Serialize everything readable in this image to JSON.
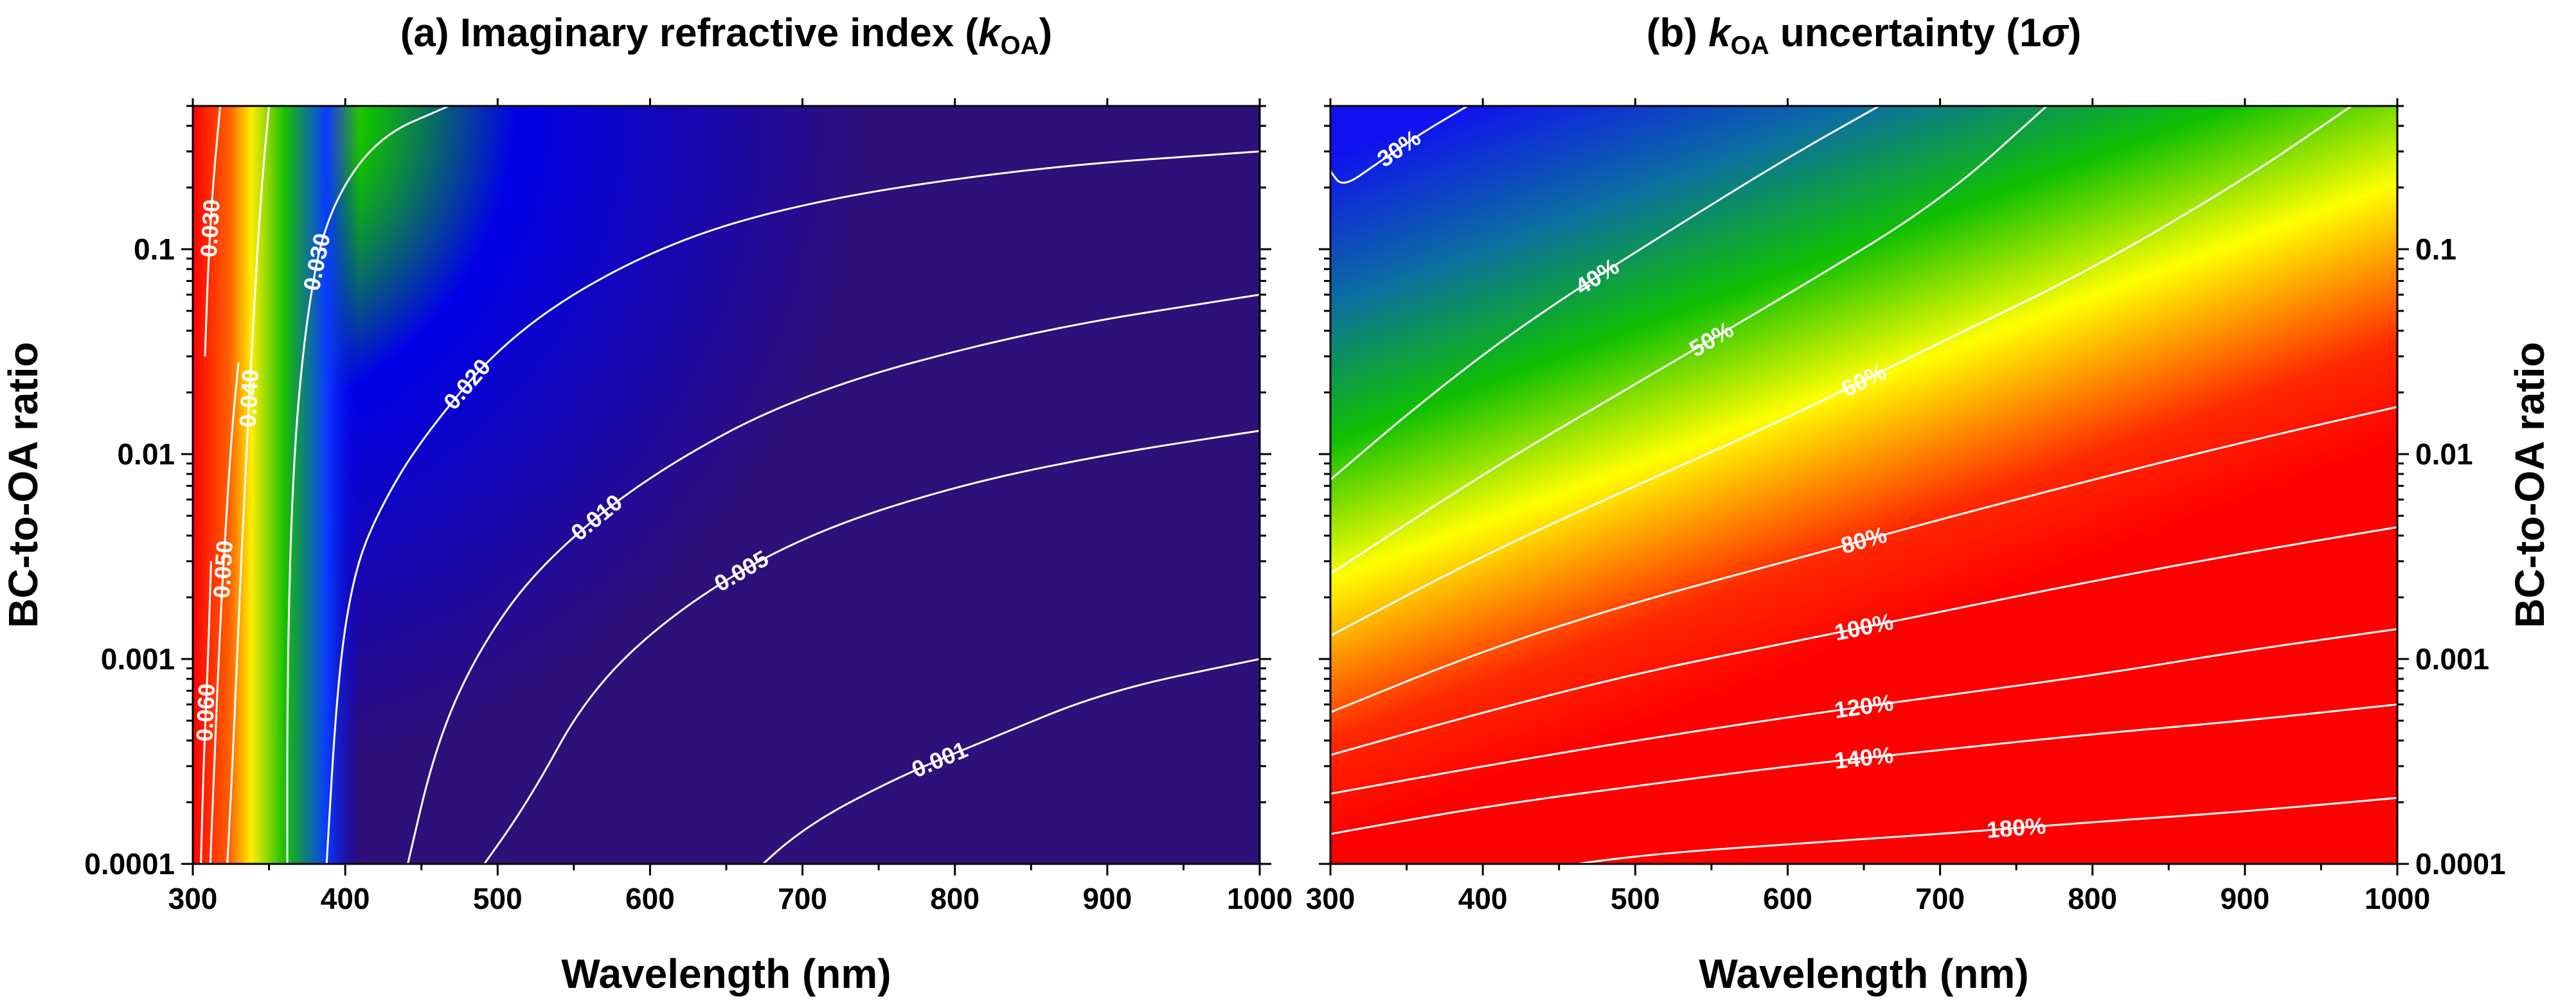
{
  "figure": {
    "panel_a_title": "(a) Imaginary refractive index (",
    "panel_b_title_suffix": " uncertainty (1",
    "k_symbol": "k",
    "k_subscript": "OA",
    "sigma_symbol": "σ",
    "close_paren": ")"
  },
  "chart_data": [
    {
      "type": "heatmap",
      "title": "(a) Imaginary refractive index (kOA)",
      "xlabel": "Wavelength (nm)",
      "ylabel": "BC-to-OA ratio",
      "xlim": [
        300,
        1000
      ],
      "ylim": [
        0.0001,
        0.5
      ],
      "y_scale": "log",
      "xticks": [
        300,
        400,
        500,
        600,
        700,
        800,
        900,
        1000
      ],
      "xtick_labels": [
        "300",
        "400",
        "500",
        "600",
        "700",
        "800",
        "900",
        "1000"
      ],
      "yticks": [
        0.0001,
        0.001,
        0.01,
        0.1
      ],
      "ytick_labels": [
        "0.0001",
        "0.001",
        "0.01",
        "0.1"
      ],
      "colormap": [
        "#2f0f7a",
        "#0000e8",
        "#10c000",
        "#ffff00",
        "#ff0000"
      ],
      "contours": [
        {
          "label": "0.060",
          "points": [
            [
              305,
              8e-05
            ],
            [
              307,
              0.0003
            ],
            [
              310,
              0.001
            ],
            [
              312,
              0.003
            ]
          ]
        },
        {
          "label": "0.050",
          "points": [
            [
              311,
              8e-05
            ],
            [
              314,
              0.0003
            ],
            [
              318,
              0.0015
            ],
            [
              322,
              0.005
            ],
            [
              326,
              0.014
            ],
            [
              330,
              0.028
            ]
          ]
        },
        {
          "label": "0.040",
          "points": [
            [
              322,
              8e-05
            ],
            [
              326,
              0.0003
            ],
            [
              330,
              0.0015
            ],
            [
              334,
              0.007
            ],
            [
              340,
              0.05
            ],
            [
              345,
              0.2
            ],
            [
              350,
              0.5
            ]
          ]
        },
        {
          "label": "0.030",
          "points": [
            [
              362,
              8e-05
            ],
            [
              362,
              0.001
            ],
            [
              366,
              0.01
            ],
            [
              375,
              0.05
            ],
            [
              388,
              0.15
            ],
            [
              420,
              0.35
            ],
            [
              468,
              0.5
            ]
          ]
        },
        {
          "label": "0.030",
          "points": [
            [
              318,
              0.5
            ],
            [
              313,
              0.2
            ],
            [
              310,
              0.08
            ],
            [
              308,
              0.03
            ]
          ]
        },
        {
          "label": "0.020",
          "points": [
            [
              387,
              8e-05
            ],
            [
              395,
              0.0008
            ],
            [
              405,
              0.0025
            ],
            [
              420,
              0.005
            ],
            [
              450,
              0.012
            ],
            [
              510,
              0.04
            ],
            [
              600,
              0.1
            ],
            [
              700,
              0.17
            ],
            [
              850,
              0.25
            ],
            [
              1000,
              0.3
            ]
          ]
        },
        {
          "label": "0.010",
          "points": [
            [
              438,
              8e-05
            ],
            [
              460,
              0.0004
            ],
            [
              490,
              0.0012
            ],
            [
              530,
              0.003
            ],
            [
              600,
              0.008
            ],
            [
              700,
              0.02
            ],
            [
              850,
              0.04
            ],
            [
              1000,
              0.06
            ]
          ]
        },
        {
          "label": "0.005",
          "points": [
            [
              482,
              8e-05
            ],
            [
              520,
              0.0002
            ],
            [
              560,
              0.0007
            ],
            [
              620,
              0.0018
            ],
            [
              700,
              0.004
            ],
            [
              800,
              0.007
            ],
            [
              900,
              0.01
            ],
            [
              1000,
              0.013
            ]
          ]
        },
        {
          "label": "0.001",
          "points": [
            [
              660,
              8e-05
            ],
            [
              700,
              0.00015
            ],
            [
              760,
              0.00026
            ],
            [
              820,
              0.0004
            ],
            [
              900,
              0.0007
            ],
            [
              1000,
              0.001
            ]
          ]
        }
      ]
    },
    {
      "type": "heatmap",
      "title": "(b) kOA uncertainty (1σ)",
      "xlabel": "Wavelength (nm)",
      "ylabel": "BC-to-OA ratio",
      "ylabel_position": "right",
      "xlim": [
        300,
        1000
      ],
      "ylim": [
        0.0001,
        0.5
      ],
      "y_scale": "log",
      "xticks": [
        300,
        400,
        500,
        600,
        700,
        800,
        900,
        1000
      ],
      "xtick_labels": [
        "300",
        "400",
        "500",
        "600",
        "700",
        "800",
        "900",
        "1000"
      ],
      "yticks": [
        0.0001,
        0.001,
        0.01,
        0.1
      ],
      "ytick_labels": [
        "0.0001",
        "0.001",
        "0.01",
        "0.1"
      ],
      "colormap": [
        "#1010f0",
        "#10c000",
        "#ffff00",
        "#ff0000"
      ],
      "contours": [
        {
          "label": "30%",
          "points": [
            [
              300,
              0.24
            ],
            [
              308,
              0.2
            ],
            [
              330,
              0.26
            ],
            [
              360,
              0.37
            ],
            [
              390,
              0.5
            ]
          ]
        },
        {
          "label": "40%",
          "points": [
            [
              300,
              0.0075
            ],
            [
              360,
              0.018
            ],
            [
              430,
              0.045
            ],
            [
              520,
              0.12
            ],
            [
              600,
              0.28
            ],
            [
              660,
              0.5
            ]
          ]
        },
        {
          "label": "50%",
          "points": [
            [
              300,
              0.0026
            ],
            [
              400,
              0.008
            ],
            [
              500,
              0.022
            ],
            [
              600,
              0.06
            ],
            [
              700,
              0.17
            ],
            [
              770,
              0.5
            ]
          ]
        },
        {
          "label": "60%",
          "points": [
            [
              300,
              0.0013
            ],
            [
              400,
              0.0032
            ],
            [
              500,
              0.007
            ],
            [
              600,
              0.015
            ],
            [
              700,
              0.035
            ],
            [
              800,
              0.08
            ],
            [
              900,
              0.22
            ],
            [
              970,
              0.5
            ]
          ]
        },
        {
          "label": "80%",
          "points": [
            [
              300,
              0.00055
            ],
            [
              400,
              0.0011
            ],
            [
              500,
              0.0019
            ],
            [
              600,
              0.003
            ],
            [
              700,
              0.0048
            ],
            [
              800,
              0.0075
            ],
            [
              900,
              0.0115
            ],
            [
              1000,
              0.017
            ]
          ]
        },
        {
          "label": "100%",
          "points": [
            [
              300,
              0.00034
            ],
            [
              400,
              0.00055
            ],
            [
              500,
              0.00085
            ],
            [
              600,
              0.0012
            ],
            [
              700,
              0.0017
            ],
            [
              800,
              0.0024
            ],
            [
              900,
              0.0033
            ],
            [
              1000,
              0.0044
            ]
          ]
        },
        {
          "label": "120%",
          "points": [
            [
              300,
              0.00022
            ],
            [
              400,
              0.0003
            ],
            [
              500,
              0.0004
            ],
            [
              600,
              0.00052
            ],
            [
              700,
              0.00066
            ],
            [
              800,
              0.00083
            ],
            [
              900,
              0.0011
            ],
            [
              1000,
              0.0014
            ]
          ]
        },
        {
          "label": "140%",
          "points": [
            [
              300,
              0.00014
            ],
            [
              400,
              0.00019
            ],
            [
              500,
              0.00024
            ],
            [
              600,
              0.0003
            ],
            [
              700,
              0.00036
            ],
            [
              800,
              0.00043
            ],
            [
              900,
              0.0005
            ],
            [
              1000,
              0.0006
            ]
          ]
        },
        {
          "label": "180%",
          "points": [
            [
              420,
              9e-05
            ],
            [
              500,
              0.00011
            ],
            [
              600,
              0.000125
            ],
            [
              700,
              0.00014
            ],
            [
              800,
              0.00016
            ],
            [
              900,
              0.00018
            ],
            [
              1000,
              0.00021
            ]
          ]
        }
      ]
    }
  ]
}
